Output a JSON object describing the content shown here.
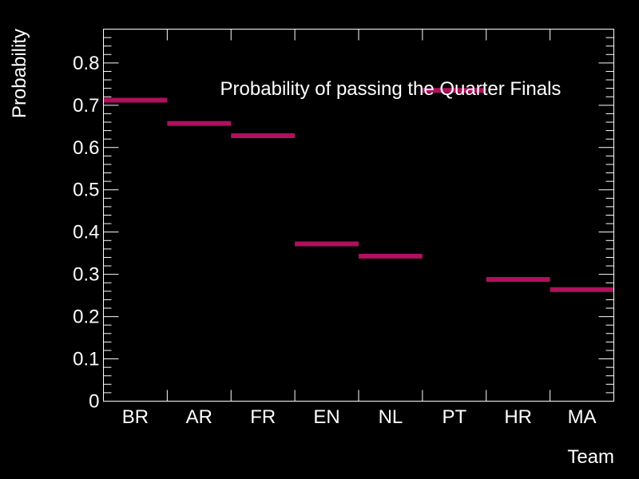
{
  "chart_data": {
    "type": "bar",
    "title": "Probability of passing the Quarter Finals",
    "xlabel": "Team",
    "ylabel": "Probability",
    "categories": [
      "BR",
      "AR",
      "FR",
      "EN",
      "NL",
      "PT",
      "HR",
      "MA"
    ],
    "values": [
      0.712,
      0.657,
      0.628,
      0.372,
      0.343,
      0.735,
      0.288,
      0.264
    ],
    "ylim": [
      0,
      0.88
    ],
    "yticks": [
      "0",
      "0.1",
      "0.2",
      "0.3",
      "0.4",
      "0.5",
      "0.6",
      "0.7",
      "0.8"
    ],
    "grid": false,
    "bar_color": "#b0105e",
    "background": "#000000",
    "foreground": "#ffffff"
  }
}
